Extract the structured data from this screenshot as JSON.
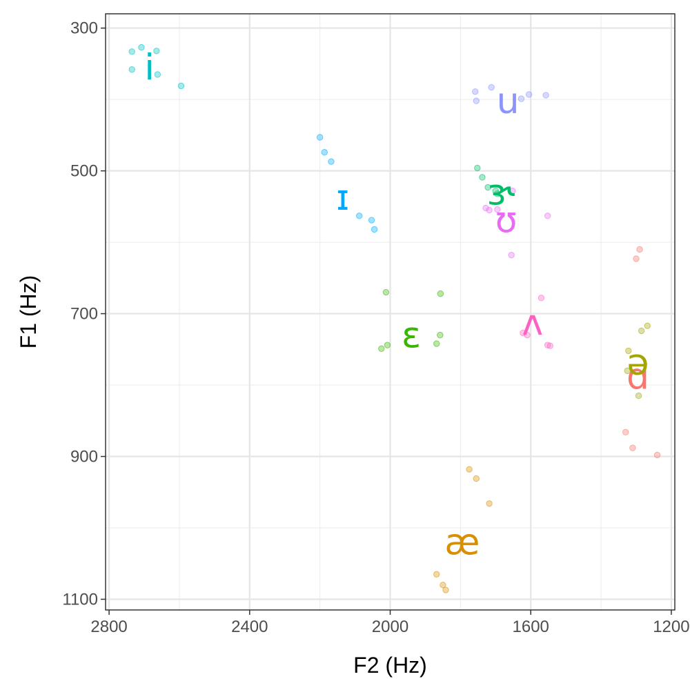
{
  "chart_data": {
    "type": "scatter",
    "xlabel": "F2 (Hz)",
    "ylabel": "F1 (Hz)",
    "xlim": [
      2810,
      1190
    ],
    "ylim": [
      1115,
      280
    ],
    "x_reversed": true,
    "y_reversed": true,
    "x_ticks": [
      2800,
      2400,
      2000,
      1600,
      1200
    ],
    "x_tick_labels": [
      "2800",
      "2400",
      "2000",
      "1600",
      "1200"
    ],
    "y_ticks": [
      300,
      500,
      700,
      900,
      1100
    ],
    "y_tick_labels": [
      "300",
      "500",
      "700",
      "900",
      "1100"
    ],
    "x_minor_ticks": [
      2600,
      2200,
      1800,
      1400
    ],
    "y_minor_ticks": [
      400,
      600,
      800,
      1000
    ],
    "grid": true,
    "legend": "none",
    "series": [
      {
        "name": "i",
        "color": "#00BFC4",
        "label_pos": [
          2685,
          355
        ],
        "points": [
          [
            2735,
            333
          ],
          [
            2708,
            327
          ],
          [
            2665,
            332
          ],
          [
            2735,
            358
          ],
          [
            2662,
            365
          ],
          [
            2595,
            381
          ]
        ]
      },
      {
        "name": "ɪ",
        "color": "#00A9FF",
        "label_pos": [
          2135,
          537
        ],
        "points": [
          [
            2200,
            453
          ],
          [
            2187,
            474
          ],
          [
            2168,
            487
          ],
          [
            2088,
            563
          ],
          [
            2053,
            569
          ],
          [
            2045,
            582
          ]
        ]
      },
      {
        "name": "u",
        "color": "#8B93FF",
        "label_pos": [
          1665,
          402
        ],
        "points": [
          [
            1758,
            389
          ],
          [
            1755,
            402
          ],
          [
            1712,
            383
          ],
          [
            1627,
            399
          ],
          [
            1605,
            393
          ],
          [
            1557,
            394
          ]
        ]
      },
      {
        "name": "ɝ",
        "color": "#00BE67",
        "label_pos": [
          1685,
          530
        ],
        "points": [
          [
            1752,
            496
          ],
          [
            1738,
            509
          ],
          [
            1722,
            523
          ],
          [
            1700,
            528
          ],
          [
            1695,
            532
          ]
        ]
      },
      {
        "name": "ʊ",
        "color": "#E76BF3",
        "label_pos": [
          1670,
          568
        ],
        "points": [
          [
            1728,
            552
          ],
          [
            1718,
            555
          ],
          [
            1695,
            554
          ],
          [
            1652,
            528
          ],
          [
            1552,
            563
          ],
          [
            1655,
            618
          ]
        ]
      },
      {
        "name": "ɛ",
        "color": "#39B600",
        "label_pos": [
          1940,
          730
        ],
        "points": [
          [
            2012,
            670
          ],
          [
            1857,
            672
          ],
          [
            1858,
            730
          ],
          [
            1868,
            742
          ],
          [
            2008,
            744
          ],
          [
            2025,
            749
          ]
        ]
      },
      {
        "name": "ʌ",
        "color": "#FF61C3",
        "label_pos": [
          1595,
          712
        ],
        "points": [
          [
            1570,
            678
          ],
          [
            1622,
            727
          ],
          [
            1610,
            730
          ],
          [
            1552,
            744
          ],
          [
            1545,
            745
          ]
        ]
      },
      {
        "name": "ɑ",
        "color": "#F8766D",
        "label_pos": [
          1295,
          788
        ],
        "points": [
          [
            1290,
            610
          ],
          [
            1300,
            623
          ],
          [
            1330,
            866
          ],
          [
            1310,
            888
          ],
          [
            1240,
            898
          ]
        ]
      },
      {
        "name": "ə",
        "color": "#A3A500",
        "label_pos": [
          1295,
          768
        ],
        "points": [
          [
            1268,
            717
          ],
          [
            1285,
            724
          ],
          [
            1322,
            752
          ],
          [
            1325,
            780
          ],
          [
            1293,
            815
          ]
        ]
      },
      {
        "name": "æ",
        "color": "#D89000",
        "label_pos": [
          1795,
          1020
        ],
        "points": [
          [
            1775,
            918
          ],
          [
            1755,
            931
          ],
          [
            1718,
            966
          ],
          [
            1868,
            1065
          ],
          [
            1850,
            1080
          ],
          [
            1842,
            1087
          ]
        ]
      }
    ]
  }
}
